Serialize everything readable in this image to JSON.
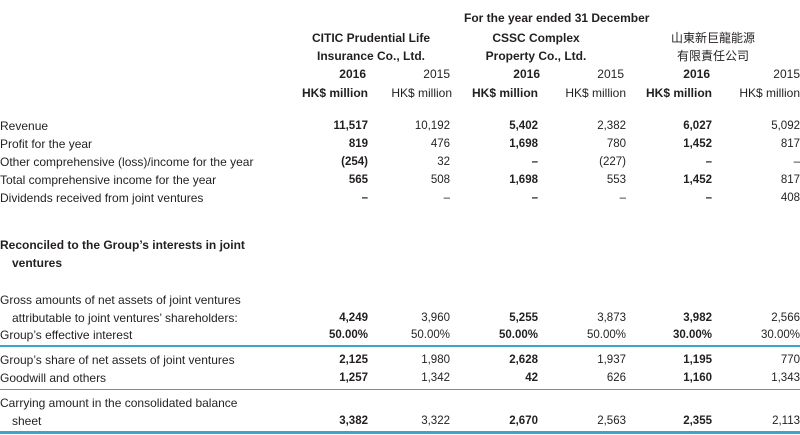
{
  "header": {
    "period": "For the year ended 31 December",
    "companies": [
      {
        "name_line1": "CITIC Prudential Life",
        "name_line2": "Insurance Co., Ltd."
      },
      {
        "name_line1": "CSSC Complex",
        "name_line2": "Property Co., Ltd."
      },
      {
        "name_line1": "山東新巨龍能源",
        "name_line2": "有限責任公司"
      }
    ],
    "year_current": "2016",
    "year_prior": "2015",
    "unit": "HK$ million"
  },
  "rows": [
    {
      "label": "Revenue",
      "values": [
        "11,517",
        "10,192",
        "5,402",
        "2,382",
        "6,027",
        "5,092"
      ]
    },
    {
      "label": "Profit for the year",
      "values": [
        "819",
        "476",
        "1,698",
        "780",
        "1,452",
        "817"
      ]
    },
    {
      "label": "Other comprehensive (loss)/income for the year",
      "values": [
        "(254)",
        "32",
        "–",
        "(227)",
        "–",
        "–"
      ]
    },
    {
      "label": "Total comprehensive income for the year",
      "values": [
        "565",
        "508",
        "1,698",
        "553",
        "1,452",
        "817"
      ]
    },
    {
      "label": "Dividends received from joint ventures",
      "values": [
        "–",
        "–",
        "–",
        "–",
        "–",
        "408"
      ]
    }
  ],
  "section_heading": {
    "line1": "Reconciled to the Group’s interests in joint",
    "line2": "ventures"
  },
  "gross": {
    "label_line1": "Gross amounts of net assets of joint ventures",
    "label_line2": "attributable to joint ventures’ shareholders:",
    "values": [
      "4,249",
      "3,960",
      "5,255",
      "3,873",
      "3,982",
      "2,566"
    ]
  },
  "effective": {
    "label": "Group’s effective interest",
    "values": [
      "50.00%",
      "50.00%",
      "50.00%",
      "50.00%",
      "30.00%",
      "30.00%"
    ]
  },
  "share": {
    "label": "Group’s share of net assets of joint ventures",
    "values": [
      "2,125",
      "1,980",
      "2,628",
      "1,937",
      "1,195",
      "770"
    ]
  },
  "goodwill": {
    "label": "Goodwill and others",
    "values": [
      "1,257",
      "1,342",
      "42",
      "626",
      "1,160",
      "1,343"
    ]
  },
  "carrying": {
    "label_line1": "Carrying amount in the consolidated balance",
    "label_line2": "sheet",
    "values": [
      "3,382",
      "3,322",
      "2,670",
      "2,563",
      "2,355",
      "2,113"
    ]
  },
  "colors": {
    "rule": "#3aa6c8",
    "text": "#231f20"
  }
}
